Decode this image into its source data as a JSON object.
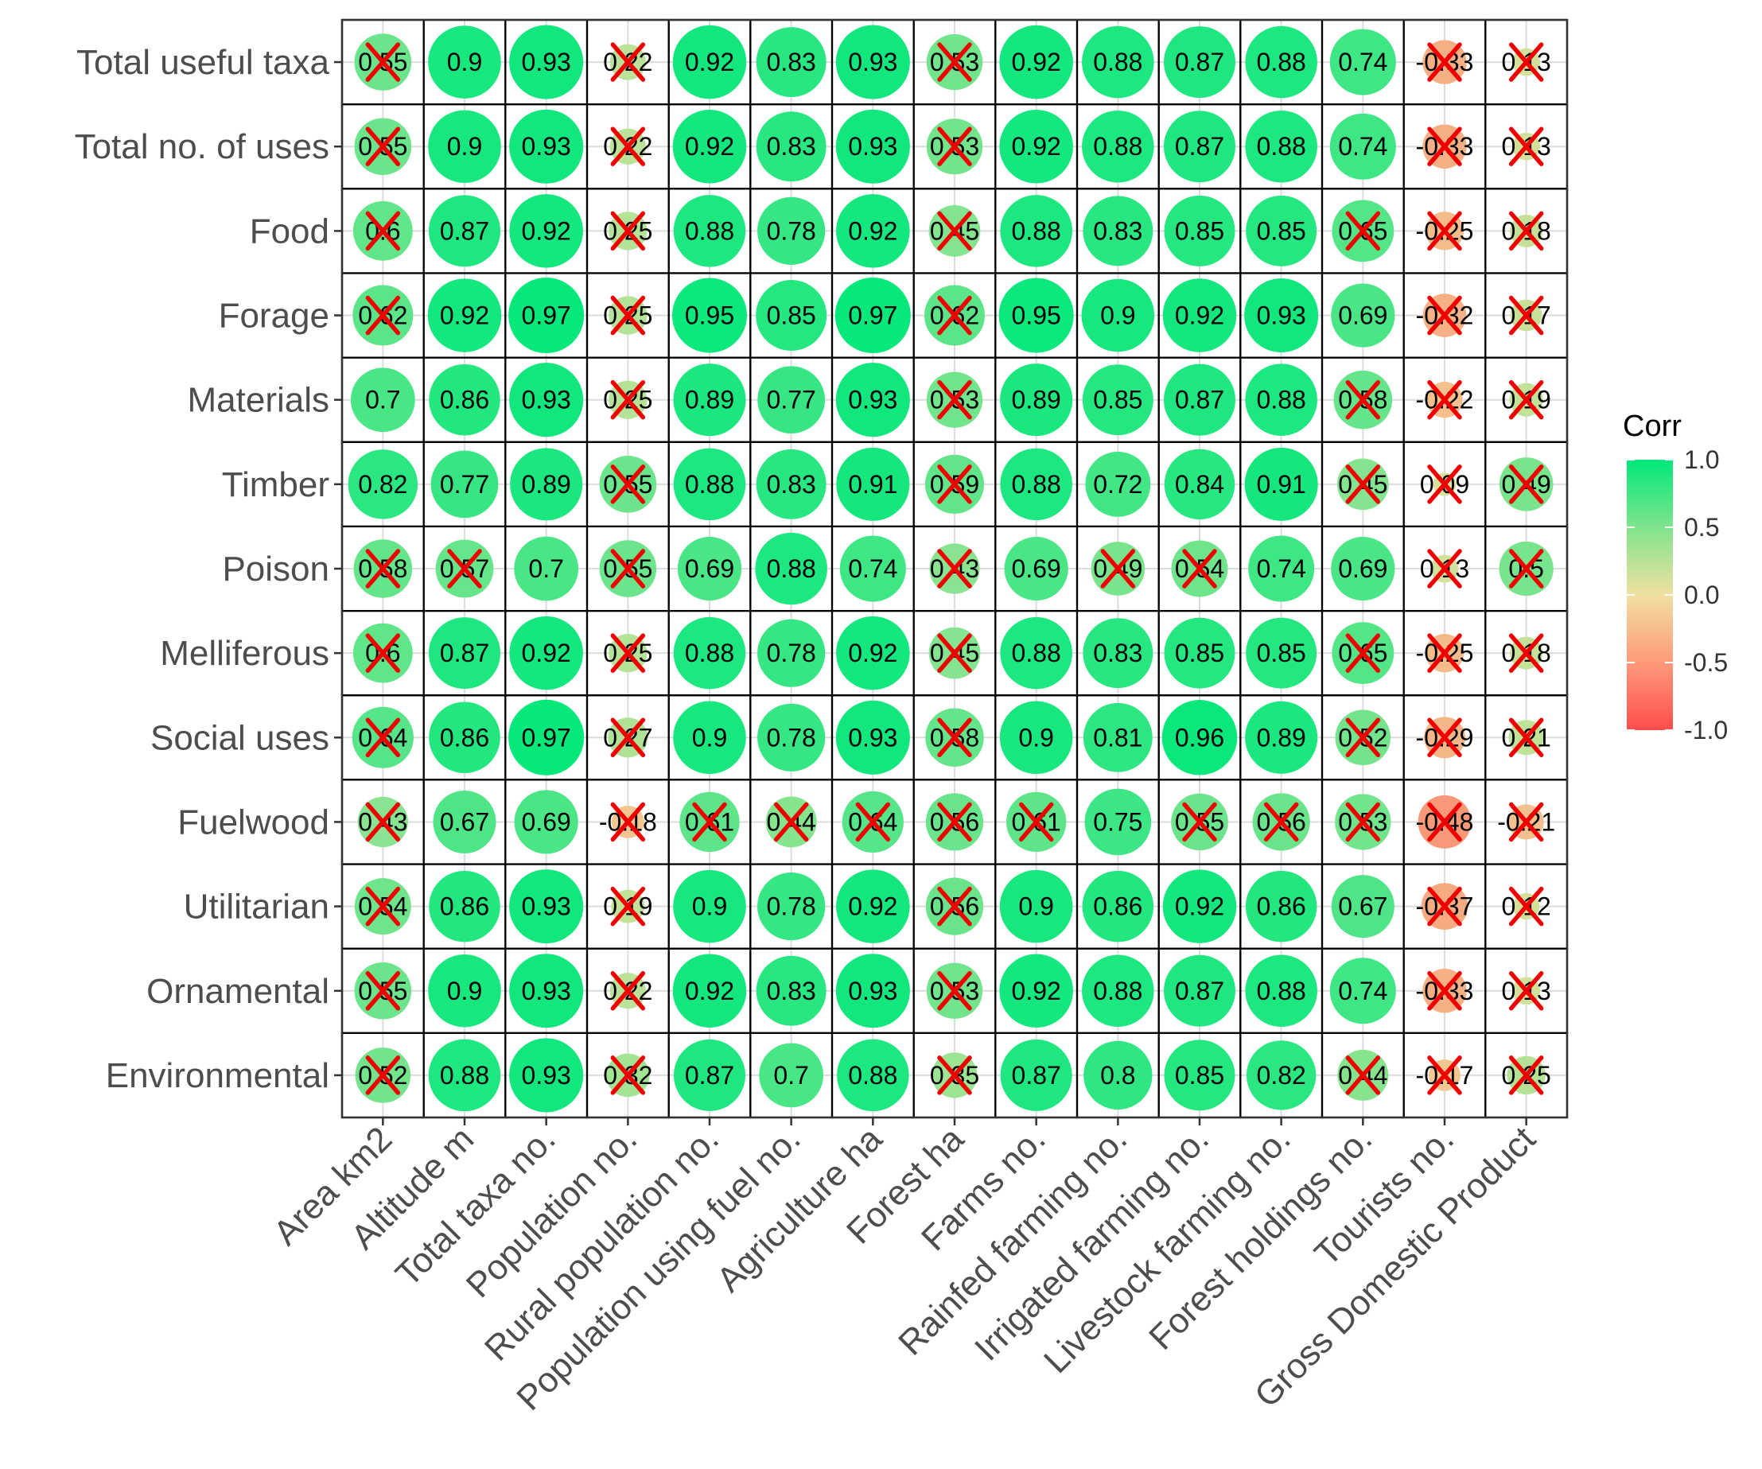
{
  "chart_data": {
    "type": "heatmap",
    "style": "correlogram-circles",
    "title": "",
    "rows": [
      "Total useful taxa",
      "Total no. of uses",
      "Food",
      "Forage",
      "Materials",
      "Timber",
      "Poison",
      "Melliferous",
      "Social uses",
      "Fuelwood",
      "Utilitarian",
      "Ornamental",
      "Environmental"
    ],
    "columns": [
      "Area km2",
      "Altitude m",
      "Total taxa no.",
      "Population no.",
      "Rural population no.",
      "Population using fuel no.",
      "Agriculture ha",
      "Forest ha",
      "Farms no.",
      "Rainfed farming no.",
      "Irrigated farming no.",
      "Livestock farming no.",
      "Forest holdings no.",
      "Tourists no.",
      "Gross Domestic Product"
    ],
    "labels": [
      [
        "0.55",
        "0.9",
        "0.93",
        "0.22",
        "0.92",
        "0.83",
        "0.93",
        "0.53",
        "0.92",
        "0.88",
        "0.87",
        "0.88",
        "0.74",
        "-0.33",
        "0.13"
      ],
      [
        "0.55",
        "0.9",
        "0.93",
        "0.22",
        "0.92",
        "0.83",
        "0.93",
        "0.53",
        "0.92",
        "0.88",
        "0.87",
        "0.88",
        "0.74",
        "-0.33",
        "0.13"
      ],
      [
        "0.6",
        "0.87",
        "0.92",
        "0.25",
        "0.88",
        "0.78",
        "0.92",
        "0.45",
        "0.88",
        "0.83",
        "0.85",
        "0.85",
        "0.65",
        "-0.25",
        "0.18"
      ],
      [
        "0.62",
        "0.92",
        "0.97",
        "0.25",
        "0.95",
        "0.85",
        "0.97",
        "0.62",
        "0.95",
        "0.9",
        "0.92",
        "0.93",
        "0.69",
        "-0.32",
        "0.17"
      ],
      [
        "0.7",
        "0.86",
        "0.93",
        "0.25",
        "0.89",
        "0.77",
        "0.93",
        "0.53",
        "0.89",
        "0.85",
        "0.87",
        "0.88",
        "0.58",
        "-0.22",
        "0.19"
      ],
      [
        "0.82",
        "0.77",
        "0.89",
        "0.55",
        "0.88",
        "0.83",
        "0.91",
        "0.59",
        "0.88",
        "0.72",
        "0.84",
        "0.91",
        "0.45",
        "0.09",
        "0.49"
      ],
      [
        "0.58",
        "0.57",
        "0.7",
        "0.55",
        "0.69",
        "0.88",
        "0.74",
        "0.43",
        "0.69",
        "0.49",
        "0.54",
        "0.74",
        "0.69",
        "0.13",
        "0.5"
      ],
      [
        "0.6",
        "0.87",
        "0.92",
        "0.25",
        "0.88",
        "0.78",
        "0.92",
        "0.45",
        "0.88",
        "0.83",
        "0.85",
        "0.85",
        "0.65",
        "-0.25",
        "0.18"
      ],
      [
        "0.64",
        "0.86",
        "0.97",
        "0.27",
        "0.9",
        "0.78",
        "0.93",
        "0.58",
        "0.9",
        "0.81",
        "0.96",
        "0.89",
        "0.52",
        "-0.29",
        "0.21"
      ],
      [
        "0.43",
        "0.67",
        "0.69",
        "-0.18",
        "0.61",
        "0.44",
        "0.64",
        "0.56",
        "0.61",
        "0.75",
        "0.55",
        "0.56",
        "0.53",
        "-0.48",
        "-0.21"
      ],
      [
        "0.54",
        "0.86",
        "0.93",
        "0.19",
        "0.9",
        "0.78",
        "0.92",
        "0.56",
        "0.9",
        "0.86",
        "0.92",
        "0.86",
        "0.67",
        "-0.37",
        "0.12"
      ],
      [
        "0.55",
        "0.9",
        "0.93",
        "0.22",
        "0.92",
        "0.83",
        "0.93",
        "0.53",
        "0.92",
        "0.88",
        "0.87",
        "0.88",
        "0.74",
        "-0.33",
        "0.13"
      ],
      [
        "0.52",
        "0.88",
        "0.93",
        "0.32",
        "0.87",
        "0.7",
        "0.88",
        "0.35",
        "0.87",
        "0.8",
        "0.85",
        "0.82",
        "0.44",
        "-0.17",
        "0.25"
      ]
    ],
    "insignificant": [
      [
        1,
        0,
        0,
        1,
        0,
        0,
        0,
        1,
        0,
        0,
        0,
        0,
        0,
        1,
        1
      ],
      [
        1,
        0,
        0,
        1,
        0,
        0,
        0,
        1,
        0,
        0,
        0,
        0,
        0,
        1,
        1
      ],
      [
        1,
        0,
        0,
        1,
        0,
        0,
        0,
        1,
        0,
        0,
        0,
        0,
        1,
        1,
        1
      ],
      [
        1,
        0,
        0,
        1,
        0,
        0,
        0,
        1,
        0,
        0,
        0,
        0,
        0,
        1,
        1
      ],
      [
        0,
        0,
        0,
        1,
        0,
        0,
        0,
        1,
        0,
        0,
        0,
        0,
        1,
        1,
        1
      ],
      [
        0,
        0,
        0,
        1,
        0,
        0,
        0,
        1,
        0,
        0,
        0,
        0,
        1,
        1,
        1
      ],
      [
        1,
        1,
        0,
        1,
        0,
        0,
        0,
        1,
        0,
        1,
        1,
        0,
        0,
        1,
        1
      ],
      [
        1,
        0,
        0,
        1,
        0,
        0,
        0,
        1,
        0,
        0,
        0,
        0,
        1,
        1,
        1
      ],
      [
        1,
        0,
        0,
        1,
        0,
        0,
        0,
        1,
        0,
        0,
        0,
        0,
        1,
        1,
        1
      ],
      [
        1,
        0,
        0,
        1,
        1,
        1,
        1,
        1,
        1,
        0,
        1,
        1,
        1,
        1,
        1
      ],
      [
        1,
        0,
        0,
        1,
        0,
        0,
        0,
        1,
        0,
        0,
        0,
        0,
        0,
        1,
        1
      ],
      [
        1,
        0,
        0,
        1,
        0,
        0,
        0,
        1,
        0,
        0,
        0,
        0,
        0,
        1,
        1
      ],
      [
        1,
        0,
        0,
        1,
        0,
        0,
        0,
        1,
        0,
        0,
        0,
        0,
        1,
        1,
        1
      ]
    ],
    "color_range": [
      -1,
      1
    ],
    "colors": {
      "low": "#ff4d4d",
      "mid": "#f0e0a0",
      "high": "#00e87a",
      "cross": "#ee0000",
      "cell_border": "#000000",
      "grid": "#dcdcdc"
    },
    "legend": {
      "title": "Corr",
      "ticks": [
        "1.0",
        "0.5",
        "0.0",
        "-0.5",
        "-1.0"
      ],
      "position": "right"
    }
  }
}
